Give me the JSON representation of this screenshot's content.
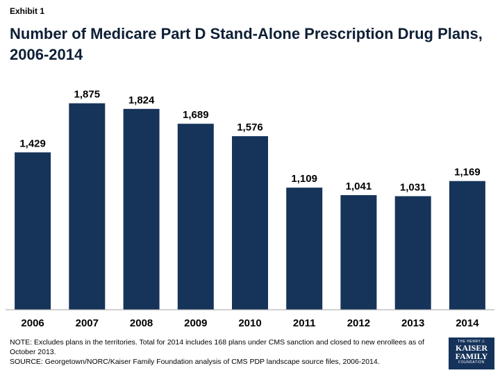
{
  "header": {
    "exhibit": "Exhibit 1",
    "title_line1": "Number of Medicare Part D Stand-Alone Prescription Drug Plans,",
    "title_line2": "2006-2014"
  },
  "chart_data": {
    "type": "bar",
    "title": "Number of Medicare Part D Stand-Alone Prescription Drug Plans, 2006-2014",
    "categories": [
      "2006",
      "2007",
      "2008",
      "2009",
      "2010",
      "2011",
      "2012",
      "2013",
      "2014"
    ],
    "values": [
      1429,
      1875,
      1824,
      1689,
      1576,
      1109,
      1041,
      1031,
      1169
    ],
    "labels": [
      "1,429",
      "1,875",
      "1,824",
      "1,689",
      "1,576",
      "1,109",
      "1,041",
      "1,031",
      "1,169"
    ],
    "xlabel": "",
    "ylabel": "",
    "ylim": [
      0,
      1930
    ],
    "bar_color": "#16345a",
    "grid": false
  },
  "notes": {
    "line1": "NOTE: Excludes plans in the territories.  Total for 2014 includes 168 plans under CMS sanction and closed to new enrollees as of",
    "line2": "October 2013.",
    "line3": "SOURCE: Georgetown/NORC/Kaiser Family Foundation analysis of CMS PDP landscape source files, 2006-2014."
  },
  "logo": {
    "top": "THE HENRY J.",
    "line1": "KAISER",
    "line2": "FAMILY",
    "bottom": "FOUNDATION"
  }
}
